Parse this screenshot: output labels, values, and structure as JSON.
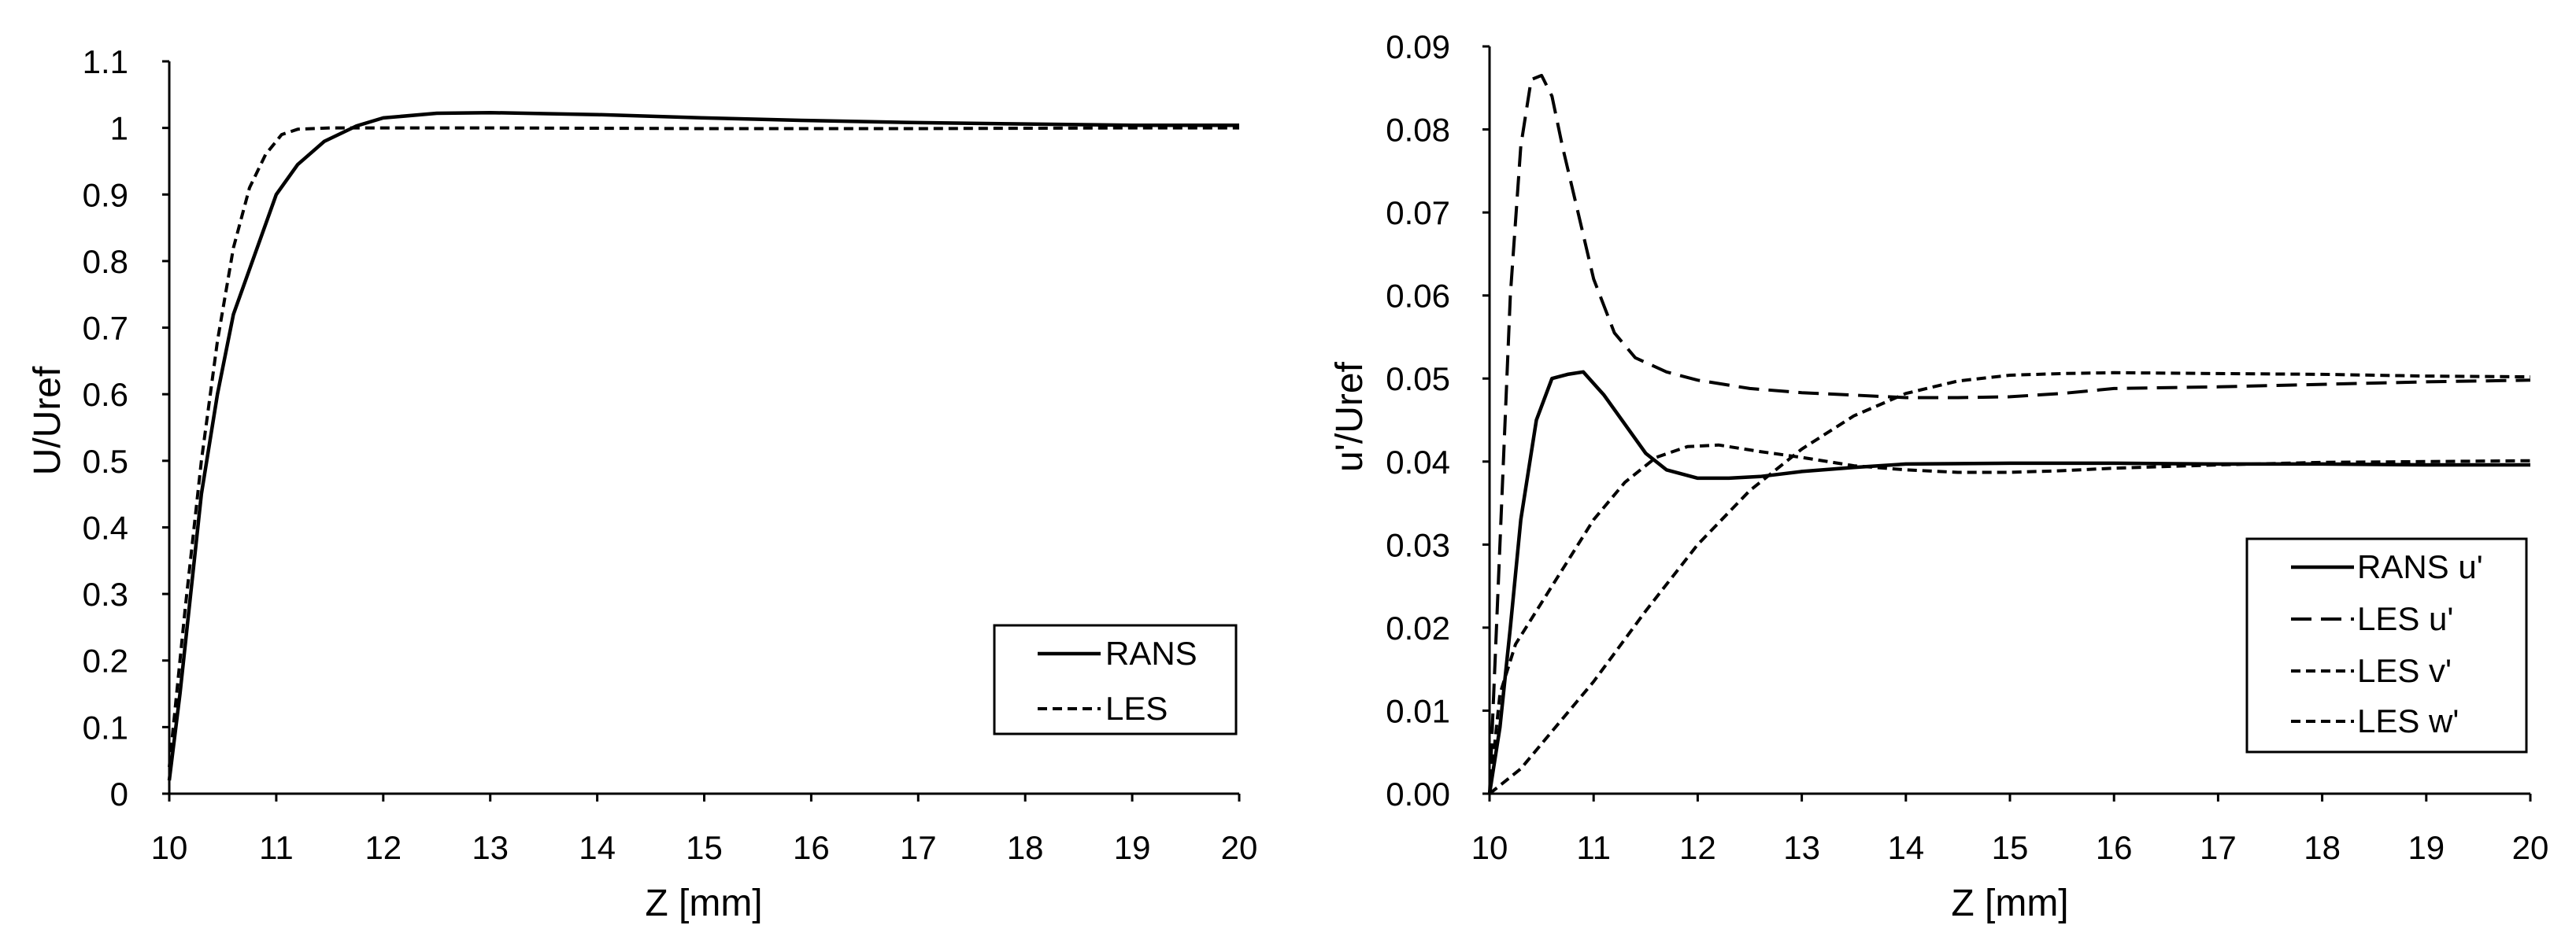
{
  "chart_data": [
    {
      "id": "left",
      "type": "line",
      "title": "",
      "xlabel": "Z [mm]",
      "ylabel": "U/Uref",
      "xlim": [
        10,
        20
      ],
      "ylim": [
        0,
        1.1
      ],
      "x_ticks": [
        "10",
        "11",
        "12",
        "13",
        "14",
        "15",
        "16",
        "17",
        "18",
        "19",
        "20"
      ],
      "y_ticks": [
        "0",
        "0.1",
        "0.2",
        "0.3",
        "0.4",
        "0.5",
        "0.6",
        "0.7",
        "0.8",
        "0.9",
        "1",
        "1.1"
      ],
      "grid": false,
      "legend_position": "bottom-right",
      "series": [
        {
          "name": "RANS",
          "dash": "solid",
          "points": [
            [
              10,
              0.02
            ],
            [
              10.1,
              0.15
            ],
            [
              10.2,
              0.3
            ],
            [
              10.3,
              0.45
            ],
            [
              10.45,
              0.6
            ],
            [
              10.6,
              0.72
            ],
            [
              10.8,
              0.81
            ],
            [
              11.0,
              0.9
            ],
            [
              11.2,
              0.945
            ],
            [
              11.45,
              0.98
            ],
            [
              11.75,
              1.003
            ],
            [
              12.0,
              1.015
            ],
            [
              12.5,
              1.022
            ],
            [
              13.0,
              1.023
            ],
            [
              14.0,
              1.02
            ],
            [
              15.0,
              1.015
            ],
            [
              16.0,
              1.011
            ],
            [
              17.0,
              1.008
            ],
            [
              18.0,
              1.006
            ],
            [
              19.0,
              1.004
            ],
            [
              20.0,
              1.004
            ]
          ]
        },
        {
          "name": "LES",
          "dash": "short-dash",
          "points": [
            [
              10,
              0.04
            ],
            [
              10.15,
              0.28
            ],
            [
              10.3,
              0.5
            ],
            [
              10.45,
              0.68
            ],
            [
              10.6,
              0.82
            ],
            [
              10.75,
              0.91
            ],
            [
              10.9,
              0.96
            ],
            [
              11.05,
              0.99
            ],
            [
              11.2,
              0.998
            ],
            [
              11.5,
              1.0
            ],
            [
              13.0,
              1.0
            ],
            [
              15.0,
              0.999
            ],
            [
              17.0,
              0.999
            ],
            [
              19.0,
              1.0
            ],
            [
              20.0,
              1.0
            ]
          ]
        }
      ]
    },
    {
      "id": "right",
      "type": "line",
      "title": "",
      "xlabel": "Z [mm]",
      "ylabel": "u'/Uref",
      "xlim": [
        10,
        20
      ],
      "ylim": [
        0,
        0.09
      ],
      "x_ticks": [
        "10",
        "11",
        "12",
        "13",
        "14",
        "15",
        "16",
        "17",
        "18",
        "19",
        "20"
      ],
      "y_ticks": [
        "0.00",
        "0.01",
        "0.02",
        "0.03",
        "0.04",
        "0.05",
        "0.06",
        "0.07",
        "0.08",
        "0.09"
      ],
      "grid": false,
      "legend_position": "bottom-right",
      "series": [
        {
          "name": "RANS u'",
          "dash": "solid",
          "points": [
            [
              10,
              0.0
            ],
            [
              10.1,
              0.008
            ],
            [
              10.2,
              0.02
            ],
            [
              10.3,
              0.033
            ],
            [
              10.45,
              0.045
            ],
            [
              10.6,
              0.05
            ],
            [
              10.75,
              0.0505
            ],
            [
              10.9,
              0.0508
            ],
            [
              11.1,
              0.048
            ],
            [
              11.3,
              0.0445
            ],
            [
              11.5,
              0.041
            ],
            [
              11.7,
              0.039
            ],
            [
              12.0,
              0.038
            ],
            [
              12.3,
              0.038
            ],
            [
              12.6,
              0.0382
            ],
            [
              13.0,
              0.0388
            ],
            [
              13.5,
              0.0393
            ],
            [
              14.0,
              0.0397
            ],
            [
              15.0,
              0.0398
            ],
            [
              16.0,
              0.0398
            ],
            [
              17.0,
              0.0397
            ],
            [
              18.0,
              0.0397
            ],
            [
              19.0,
              0.0396
            ],
            [
              20.0,
              0.0396
            ]
          ]
        },
        {
          "name": "LES u'",
          "dash": "long-dash",
          "points": [
            [
              10,
              0.0
            ],
            [
              10.1,
              0.03
            ],
            [
              10.2,
              0.06
            ],
            [
              10.3,
              0.078
            ],
            [
              10.4,
              0.086
            ],
            [
              10.5,
              0.0865
            ],
            [
              10.6,
              0.084
            ],
            [
              10.7,
              0.078
            ],
            [
              10.85,
              0.07
            ],
            [
              11.0,
              0.062
            ],
            [
              11.2,
              0.0555
            ],
            [
              11.4,
              0.0525
            ],
            [
              11.7,
              0.0508
            ],
            [
              12.0,
              0.0498
            ],
            [
              12.5,
              0.0488
            ],
            [
              13.0,
              0.0483
            ],
            [
              13.5,
              0.048
            ],
            [
              14.0,
              0.0477
            ],
            [
              14.5,
              0.0477
            ],
            [
              15.0,
              0.0478
            ],
            [
              15.5,
              0.0482
            ],
            [
              16.0,
              0.0488
            ],
            [
              17.0,
              0.049
            ],
            [
              18.0,
              0.0493
            ],
            [
              19.0,
              0.0496
            ],
            [
              20.0,
              0.0498
            ]
          ]
        },
        {
          "name": "LES v'",
          "dash": "short-dash",
          "points": [
            [
              10,
              0.0
            ],
            [
              10.1,
              0.012
            ],
            [
              10.25,
              0.018
            ],
            [
              10.5,
              0.023
            ],
            [
              10.75,
              0.028
            ],
            [
              11.0,
              0.033
            ],
            [
              11.3,
              0.0375
            ],
            [
              11.6,
              0.0405
            ],
            [
              11.9,
              0.0418
            ],
            [
              12.2,
              0.042
            ],
            [
              12.6,
              0.0412
            ],
            [
              13.0,
              0.0405
            ],
            [
              13.5,
              0.0395
            ],
            [
              14.0,
              0.039
            ],
            [
              14.5,
              0.0387
            ],
            [
              15.0,
              0.0387
            ],
            [
              15.5,
              0.0389
            ],
            [
              16.0,
              0.0392
            ],
            [
              17.0,
              0.0396
            ],
            [
              18.0,
              0.0399
            ],
            [
              19.0,
              0.04
            ],
            [
              20.0,
              0.0401
            ]
          ]
        },
        {
          "name": "LES w'",
          "dash": "short-dash",
          "points": [
            [
              10,
              0.0
            ],
            [
              10.3,
              0.003
            ],
            [
              10.6,
              0.0075
            ],
            [
              11.0,
              0.0135
            ],
            [
              11.5,
              0.022
            ],
            [
              12.0,
              0.03
            ],
            [
              12.5,
              0.0365
            ],
            [
              13.0,
              0.0415
            ],
            [
              13.5,
              0.0455
            ],
            [
              14.0,
              0.0482
            ],
            [
              14.5,
              0.0497
            ],
            [
              15.0,
              0.0504
            ],
            [
              15.5,
              0.0506
            ],
            [
              16.0,
              0.0507
            ],
            [
              17.0,
              0.0506
            ],
            [
              18.0,
              0.0505
            ],
            [
              19.0,
              0.0503
            ],
            [
              20.0,
              0.0502
            ]
          ]
        }
      ]
    }
  ]
}
